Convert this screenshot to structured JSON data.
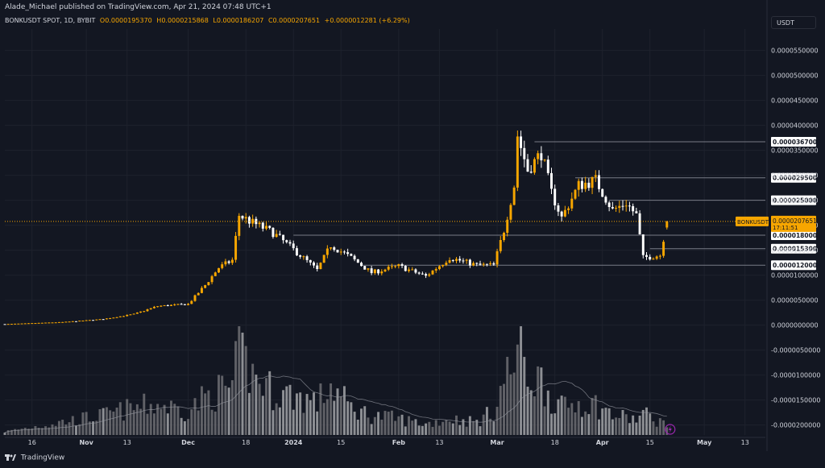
{
  "header": {
    "publisher_line": "Alade_Michael published on TradingView.com, Apr 21, 2024 07:48 UTC+1"
  },
  "legend": {
    "symbol_line": "BONKUSDT SPOT, 1D, BYBIT",
    "open": "O0.0000195370",
    "high": "H0.0000215868",
    "low": "L0.0000186207",
    "close": "C0.0000207651",
    "change": "+0.0000012281 (+6.29%)"
  },
  "toolbar": {
    "currency": "USDT"
  },
  "footer": {
    "brand": "TradingView"
  },
  "colors": {
    "background": "#131722",
    "up": "#f7a600",
    "down": "#ffffff",
    "grid": "#1e222d",
    "level_line": "#787b86",
    "price_label_bg": "#f7a600"
  },
  "chart_data": {
    "type": "candlestick",
    "symbol": "BONKUSDT",
    "exchange": "BYBIT",
    "interval": "1D",
    "ylim": [
      -2.2e-05,
      5.8e-05
    ],
    "y_tick_labels": [
      "0.0000550000",
      "0.0000500000",
      "0.0000450000",
      "0.0000400000",
      "0.0000350000",
      "0.0000300000",
      "0.0000250000",
      "0.0000200000",
      "0.0000150000",
      "0.0000100000",
      "0.0000050000",
      "0.0000000000",
      "-0.0000050000",
      "-0.0000100000",
      "-0.0000150000",
      "-0.0000200000"
    ],
    "y_tick_values": [
      5.5e-05,
      5e-05,
      4.5e-05,
      4e-05,
      3.5e-05,
      3e-05,
      2.5e-05,
      2e-05,
      1.5e-05,
      1e-05,
      5e-06,
      0,
      -5e-06,
      -1e-05,
      -1.5e-05,
      -2e-05
    ],
    "x_tick_labels": [
      "16",
      "Nov",
      "13",
      "Dec",
      "18",
      "2024",
      "15",
      "Feb",
      "13",
      "Mar",
      "18",
      "Apr",
      "15",
      "May",
      "13"
    ],
    "x_tick_dates": [
      "2023-10-16",
      "2023-11-01",
      "2023-11-13",
      "2023-12-01",
      "2023-12-18",
      "2024-01-01",
      "2024-01-15",
      "2024-02-01",
      "2024-02-13",
      "2024-03-01",
      "2024-03-18",
      "2024-04-01",
      "2024-04-15",
      "2024-05-01",
      "2024-05-13"
    ],
    "x_range": [
      "2023-10-08",
      "2024-05-19"
    ],
    "horizontal_levels": [
      {
        "value": 3.67e-05,
        "label": "0.0000367000",
        "start": "2024-03-12"
      },
      {
        "value": 2.95e-05,
        "label": "0.0000295000",
        "start": "2024-03-24"
      },
      {
        "value": 2.5e-05,
        "label": "0.0000250000",
        "start": "2024-04-03"
      },
      {
        "value": 1.8e-05,
        "label": "0.0000180000",
        "start": "2024-01-01"
      },
      {
        "value": 1.53e-05,
        "label": "0.0000153000",
        "start": "2024-04-15"
      },
      {
        "value": 1.2e-05,
        "label": "0.0000120000",
        "start": "2024-01-21"
      }
    ],
    "last_price": {
      "symbol": "BONKUSDT",
      "value": 2.07651e-05,
      "label": "0.0000207651",
      "countdown": "17:11:51"
    },
    "waypoints": [
      [
        "2023-10-08",
        2e-07,
        0.03
      ],
      [
        "2023-10-25",
        6e-07,
        0.12
      ],
      [
        "2023-11-06",
        1.2e-06,
        0.18
      ],
      [
        "2023-11-15",
        2.2e-06,
        0.25
      ],
      [
        "2023-11-22",
        3.8e-06,
        0.28
      ],
      [
        "2023-12-01",
        4.2e-06,
        0.22
      ],
      [
        "2023-12-06",
        8e-06,
        0.35
      ],
      [
        "2023-12-10",
        1.15e-05,
        0.4
      ],
      [
        "2023-12-14",
        1.3e-05,
        0.45
      ],
      [
        "2023-12-16",
        2.2e-05,
        0.75
      ],
      [
        "2023-12-20",
        2.05e-05,
        0.55
      ],
      [
        "2023-12-26",
        1.85e-05,
        0.4
      ],
      [
        "2024-01-03",
        1.4e-05,
        0.35
      ],
      [
        "2024-01-08",
        1.1e-05,
        0.3
      ],
      [
        "2024-01-12",
        1.6e-05,
        0.45
      ],
      [
        "2024-01-18",
        1.35e-05,
        0.25
      ],
      [
        "2024-01-24",
        1.05e-05,
        0.18
      ],
      [
        "2024-02-01",
        1.18e-05,
        0.15
      ],
      [
        "2024-02-09",
        9.8e-06,
        0.1
      ],
      [
        "2024-02-16",
        1.35e-05,
        0.15
      ],
      [
        "2024-02-24",
        1.2e-05,
        0.12
      ],
      [
        "2024-02-29",
        1.2e-05,
        0.22
      ],
      [
        "2024-03-03",
        1.9e-05,
        0.5
      ],
      [
        "2024-03-06",
        2.8e-05,
        0.65
      ],
      [
        "2024-03-07",
        3.8e-05,
        0.8
      ],
      [
        "2024-03-10",
        3.1e-05,
        0.55
      ],
      [
        "2024-03-14",
        3.45e-05,
        0.5
      ],
      [
        "2024-03-17",
        2.65e-05,
        0.35
      ],
      [
        "2024-03-20",
        2.15e-05,
        0.25
      ],
      [
        "2024-03-25",
        2.8e-05,
        0.3
      ],
      [
        "2024-03-30",
        2.9e-05,
        0.28
      ],
      [
        "2024-04-04",
        2.3e-05,
        0.18
      ],
      [
        "2024-04-08",
        2.45e-05,
        0.16
      ],
      [
        "2024-04-11",
        2.2e-05,
        0.14
      ],
      [
        "2024-04-13",
        1.35e-05,
        0.2
      ],
      [
        "2024-04-18",
        1.4e-05,
        0.12
      ],
      [
        "2024-04-20",
        2.07651e-05,
        0.12
      ]
    ]
  }
}
